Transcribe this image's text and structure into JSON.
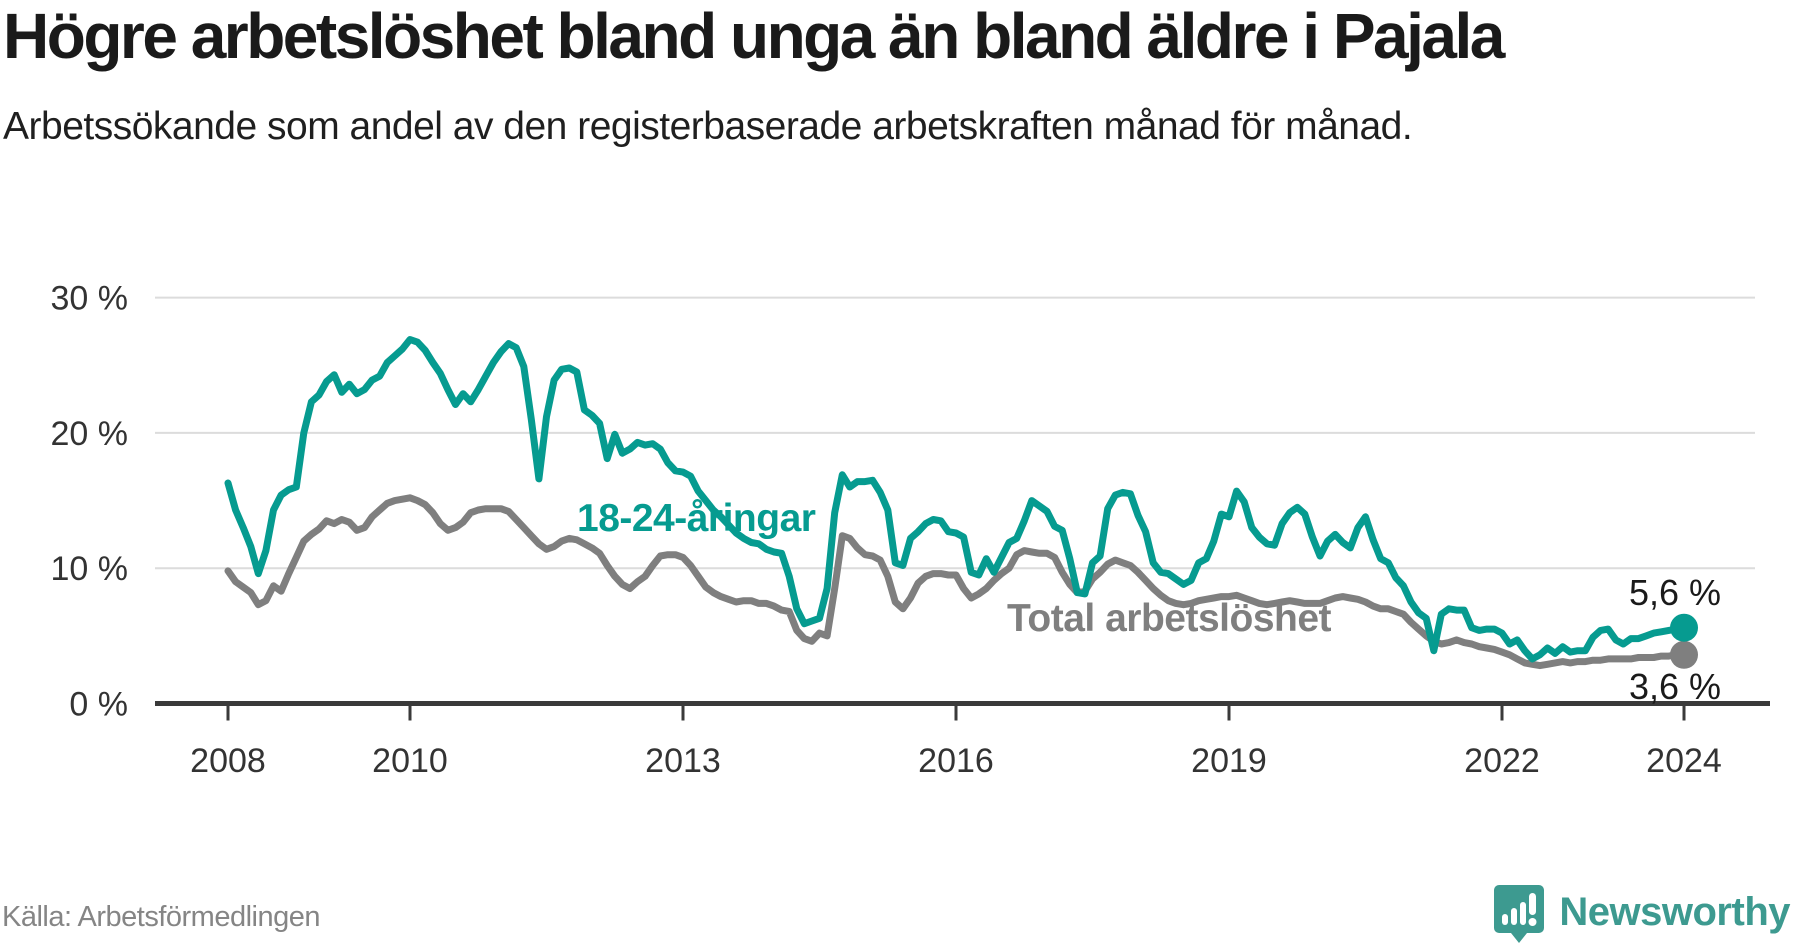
{
  "title": "Högre arbetslöshet bland unga än bland äldre i Pajala",
  "subtitle": "Arbetssökande som andel av den registerbaserade arbetskraften månad för månad.",
  "source": "Källa: Arbetsförmedlingen",
  "brand": {
    "name": "Newsworthy",
    "icon": "newsworthy-speech-bubble-bar-chart-icon",
    "color": "#3d9a90"
  },
  "colors": {
    "young_series": "#069b90",
    "total_series": "#7f7f7f",
    "grid_line": "#dcdcdc",
    "axis_line": "#3a3a3a",
    "tick_text": "#333333",
    "title_text": "#1a1a1a",
    "source_text": "#858585"
  },
  "chart_data": {
    "type": "line",
    "title": "Högre arbetslöshet bland unga än bland äldre i Pajala",
    "subtitle": "Arbetssökande som andel av den registerbaserade arbetskraften månad för månad.",
    "frequency": "monthly",
    "x_start": "2008-01",
    "x_end": "2024-01",
    "x_ticks": [
      2008,
      2010,
      2013,
      2016,
      2019,
      2022,
      2024
    ],
    "x_tick_labels": [
      "2008",
      "2010",
      "2013",
      "2016",
      "2019",
      "2022",
      "2024"
    ],
    "y_ticks": [
      0,
      10,
      20,
      30
    ],
    "y_tick_labels": [
      "0 %",
      "10 %",
      "20 %",
      "30 %"
    ],
    "ylim": [
      0,
      31.5
    ],
    "grid": "horizontal",
    "legend_position": "inline-labels",
    "series": [
      {
        "name": "18-24-åringar",
        "color": "#069b90",
        "end_label": "5,6 %",
        "end_value": 5.6,
        "values": [
          16.3,
          14.3,
          13.0,
          11.6,
          9.6,
          11.3,
          14.3,
          15.4,
          15.8,
          16.0,
          20.0,
          22.3,
          22.8,
          23.8,
          24.3,
          23.0,
          23.6,
          22.9,
          23.2,
          23.9,
          24.2,
          25.2,
          25.7,
          26.2,
          26.9,
          26.7,
          26.1,
          25.2,
          24.4,
          23.2,
          22.1,
          22.9,
          22.3,
          23.2,
          24.2,
          25.2,
          26.0,
          26.6,
          26.3,
          24.9,
          21.0,
          16.6,
          21.2,
          23.9,
          24.7,
          24.8,
          24.5,
          21.7,
          21.3,
          20.7,
          18.1,
          19.9,
          18.5,
          18.8,
          19.3,
          19.1,
          19.2,
          18.8,
          17.8,
          17.2,
          17.1,
          16.8,
          15.7,
          15.0,
          14.3,
          13.8,
          13.2,
          12.6,
          12.2,
          11.9,
          11.8,
          11.4,
          11.2,
          11.1,
          9.4,
          7.0,
          5.9,
          6.1,
          6.3,
          8.5,
          14.1,
          16.9,
          16.0,
          16.4,
          16.4,
          16.5,
          15.6,
          14.3,
          10.4,
          10.2,
          12.2,
          12.7,
          13.3,
          13.6,
          13.5,
          12.7,
          12.6,
          12.3,
          9.7,
          9.5,
          10.7,
          9.7,
          10.8,
          11.9,
          12.2,
          13.5,
          15.0,
          14.6,
          14.2,
          13.1,
          12.8,
          10.7,
          8.2,
          8.1,
          10.4,
          10.9,
          14.4,
          15.4,
          15.6,
          15.5,
          13.9,
          12.7,
          10.4,
          9.7,
          9.6,
          9.2,
          8.8,
          9.1,
          10.4,
          10.7,
          12.0,
          14.0,
          13.8,
          15.7,
          14.9,
          13.0,
          12.3,
          11.8,
          11.7,
          13.3,
          14.1,
          14.5,
          14.0,
          12.3,
          10.9,
          12.0,
          12.5,
          11.9,
          11.5,
          13.0,
          13.8,
          12.1,
          10.7,
          10.4,
          9.3,
          8.7,
          7.5,
          6.7,
          6.3,
          3.9,
          6.6,
          7.0,
          6.9,
          6.9,
          5.6,
          5.4,
          5.5,
          5.5,
          5.2,
          4.4,
          4.7,
          3.9,
          3.3,
          3.6,
          4.1,
          3.7,
          4.2,
          3.8,
          3.9,
          3.9,
          4.9,
          5.4,
          5.5,
          4.7,
          4.4,
          4.8,
          4.8,
          5.0,
          5.2,
          5.3,
          5.4,
          5.5,
          5.6
        ]
      },
      {
        "name": "Total arbetslöshet",
        "color": "#7f7f7f",
        "end_label": "3,6 %",
        "end_value": 3.6,
        "values": [
          9.8,
          9.0,
          8.6,
          8.2,
          7.3,
          7.6,
          8.7,
          8.3,
          9.6,
          10.8,
          12.0,
          12.5,
          12.9,
          13.5,
          13.3,
          13.6,
          13.4,
          12.8,
          13.0,
          13.8,
          14.3,
          14.8,
          15.0,
          15.1,
          15.2,
          15.0,
          14.7,
          14.1,
          13.3,
          12.8,
          13.0,
          13.4,
          14.1,
          14.3,
          14.4,
          14.4,
          14.4,
          14.2,
          13.6,
          13.0,
          12.4,
          11.8,
          11.4,
          11.6,
          12.0,
          12.2,
          12.1,
          11.8,
          11.5,
          11.1,
          10.2,
          9.4,
          8.8,
          8.5,
          9.0,
          9.4,
          10.2,
          10.9,
          11.0,
          11.0,
          10.8,
          10.2,
          9.4,
          8.6,
          8.2,
          7.9,
          7.7,
          7.5,
          7.6,
          7.6,
          7.4,
          7.4,
          7.2,
          6.9,
          6.8,
          5.4,
          4.8,
          4.6,
          5.2,
          5.0,
          8.5,
          12.4,
          12.2,
          11.5,
          11.0,
          10.9,
          10.6,
          9.4,
          7.5,
          7.0,
          7.8,
          8.9,
          9.4,
          9.6,
          9.6,
          9.5,
          9.5,
          8.5,
          7.8,
          8.1,
          8.5,
          9.1,
          9.6,
          10.0,
          11.0,
          11.3,
          11.2,
          11.1,
          11.1,
          10.8,
          9.7,
          8.8,
          8.2,
          8.3,
          9.2,
          9.7,
          10.3,
          10.6,
          10.4,
          10.2,
          9.7,
          9.1,
          8.5,
          8.0,
          7.6,
          7.4,
          7.3,
          7.4,
          7.6,
          7.7,
          7.8,
          7.9,
          7.9,
          8.0,
          7.8,
          7.6,
          7.4,
          7.3,
          7.4,
          7.5,
          7.6,
          7.5,
          7.4,
          7.4,
          7.4,
          7.6,
          7.8,
          7.9,
          7.8,
          7.7,
          7.5,
          7.2,
          7.0,
          7.0,
          6.8,
          6.6,
          6.0,
          5.5,
          5.0,
          4.6,
          4.4,
          4.5,
          4.7,
          4.5,
          4.4,
          4.2,
          4.1,
          4.0,
          3.8,
          3.6,
          3.3,
          3.0,
          2.9,
          2.8,
          2.9,
          3.0,
          3.1,
          3.0,
          3.1,
          3.1,
          3.2,
          3.2,
          3.3,
          3.3,
          3.3,
          3.3,
          3.4,
          3.4,
          3.4,
          3.5,
          3.5,
          3.6,
          3.6
        ]
      }
    ]
  }
}
